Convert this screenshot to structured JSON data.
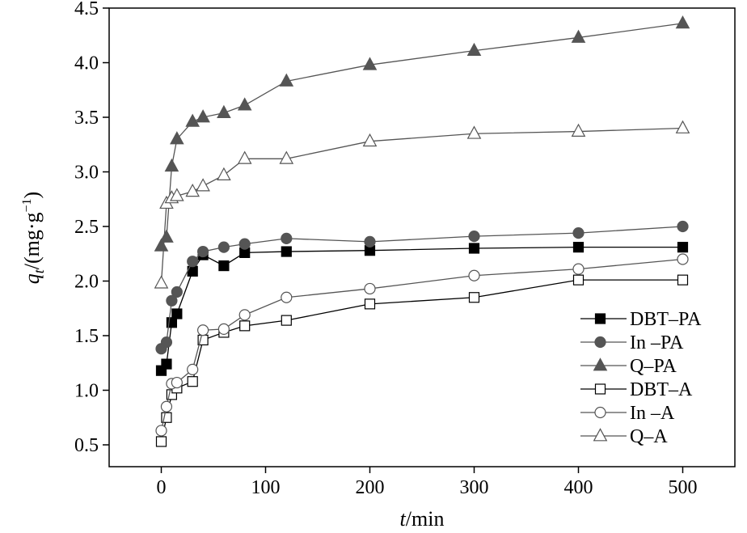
{
  "chart_data": {
    "type": "line",
    "title": "",
    "xlabel": {
      "italic": "t",
      "rest": "/min"
    },
    "ylabel": {
      "italic": "q",
      "subscript": "t",
      "rest": "/(mg·g",
      "superscript": "−1",
      "close": ")"
    },
    "xlim": [
      -50,
      550
    ],
    "ylim": [
      0.3,
      4.5
    ],
    "xticks": [
      0,
      100,
      200,
      300,
      400,
      500
    ],
    "yticks": [
      "0.5",
      "1.0",
      "1.5",
      "2.0",
      "2.5",
      "3.0",
      "3.5",
      "4.0",
      "4.5"
    ],
    "legend_position": "bottom-right",
    "x": [
      0,
      5,
      10,
      15,
      30,
      40,
      60,
      80,
      120,
      200,
      300,
      400,
      500
    ],
    "series": [
      {
        "name": "DBT–PA",
        "marker": "square",
        "filled": true,
        "color": "#000000",
        "values": [
          1.18,
          1.24,
          1.62,
          1.7,
          2.09,
          2.24,
          2.14,
          2.26,
          2.27,
          2.28,
          2.3,
          2.31,
          2.31
        ]
      },
      {
        "name": "In –PA",
        "marker": "circle",
        "filled": true,
        "color": "#555555",
        "values": [
          1.38,
          1.44,
          1.82,
          1.9,
          2.18,
          2.27,
          2.31,
          2.34,
          2.39,
          2.36,
          2.41,
          2.44,
          2.5
        ]
      },
      {
        "name": "Q–PA",
        "marker": "triangle",
        "filled": true,
        "color": "#555555",
        "values": [
          2.32,
          2.4,
          3.05,
          3.3,
          3.46,
          3.5,
          3.54,
          3.61,
          3.83,
          3.98,
          4.11,
          4.23,
          4.36
        ]
      },
      {
        "name": "DBT–A",
        "marker": "square",
        "filled": false,
        "color": "#000000",
        "values": [
          0.53,
          0.75,
          0.96,
          1.02,
          1.08,
          1.46,
          1.53,
          1.59,
          1.64,
          1.79,
          1.85,
          2.01,
          2.01
        ]
      },
      {
        "name": "In –A",
        "marker": "circle",
        "filled": false,
        "color": "#555555",
        "values": [
          0.63,
          0.85,
          1.06,
          1.07,
          1.19,
          1.55,
          1.56,
          1.69,
          1.85,
          1.93,
          2.05,
          2.11,
          2.2
        ]
      },
      {
        "name": "Q–A",
        "marker": "triangle",
        "filled": false,
        "color": "#555555",
        "values": [
          1.98,
          2.71,
          2.76,
          2.78,
          2.82,
          2.87,
          2.97,
          3.12,
          3.12,
          3.28,
          3.35,
          3.37,
          3.4
        ]
      }
    ]
  }
}
